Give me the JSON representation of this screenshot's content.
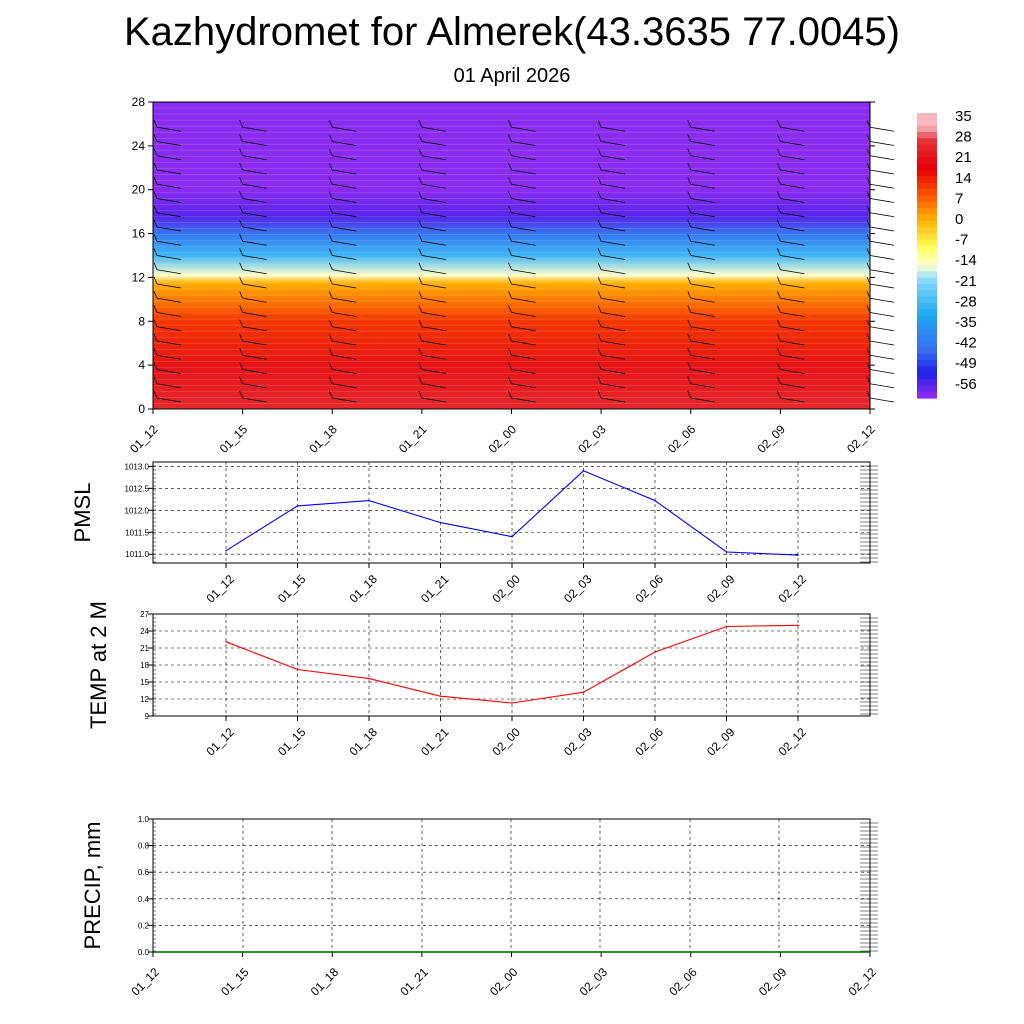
{
  "title": "Kazhydromet for Almerek(43.3635 77.0045)",
  "subtitle": "01 April 2026",
  "chart_data": [
    {
      "type": "heatmap",
      "name": "temperature-profile",
      "x_labels": [
        "01_12",
        "01_15",
        "01_18",
        "01_21",
        "02_00",
        "02_03",
        "02_06",
        "02_09",
        "02_12"
      ],
      "y_ticks": [
        0,
        4,
        8,
        12,
        16,
        20,
        24,
        28
      ],
      "ylim": [
        0,
        28
      ],
      "approx_profile": [
        {
          "level": 0,
          "value": 28
        },
        {
          "level": 4,
          "value": 24
        },
        {
          "level": 8,
          "value": 14
        },
        {
          "level": 11.5,
          "value": 2
        },
        {
          "level": 12.2,
          "value": -14
        },
        {
          "level": 14,
          "value": -28
        },
        {
          "level": 16,
          "value": -42
        },
        {
          "level": 17.5,
          "value": -56
        },
        {
          "level": 20,
          "value": -60
        },
        {
          "level": 28,
          "value": -62
        }
      ],
      "colorbar_labels": [
        "35",
        "28",
        "21",
        "14",
        "7",
        "0",
        "-7",
        "-14",
        "-21",
        "-28",
        "-35",
        "-42",
        "-49",
        "-56"
      ],
      "colorbar_stops": [
        {
          "value": 35,
          "color": "#f7b8c0"
        },
        {
          "value": 30,
          "color": "#e5323a"
        },
        {
          "value": 20,
          "color": "#e60000"
        },
        {
          "value": 10,
          "color": "#ff5a00"
        },
        {
          "value": 2,
          "color": "#ffb000"
        },
        {
          "value": -8,
          "color": "#ffff60"
        },
        {
          "value": -14,
          "color": "#ffffd0"
        },
        {
          "value": -20,
          "color": "#7fd6ff"
        },
        {
          "value": -32,
          "color": "#1ea6f0"
        },
        {
          "value": -44,
          "color": "#3a6ef0"
        },
        {
          "value": -52,
          "color": "#2020e6"
        },
        {
          "value": -60,
          "color": "#8a2cf0"
        }
      ]
    },
    {
      "type": "line",
      "name": "pmsl",
      "ylabel": "PMSL",
      "x": [
        "01_12",
        "01_15",
        "01_18",
        "01_21",
        "02_00",
        "02_03",
        "02_06",
        "02_09",
        "02_12"
      ],
      "values": [
        1011.08,
        1012.1,
        1012.22,
        1011.72,
        1011.4,
        1012.9,
        1012.22,
        1011.05,
        1010.98
      ],
      "y_ticks": [
        "1011.0",
        "1011.5",
        "1012.0",
        "1012.5",
        "1013.0"
      ],
      "ylim": [
        1010.8,
        1013.1
      ],
      "color": "#0000ff"
    },
    {
      "type": "line",
      "name": "temp-2m",
      "ylabel": "TEMP at 2 M",
      "x": [
        "01_12",
        "01_15",
        "01_18",
        "01_21",
        "02_00",
        "02_03",
        "02_06",
        "02_09",
        "02_12"
      ],
      "values": [
        22.1,
        17.2,
        15.6,
        12.5,
        11.3,
        13.2,
        20.3,
        24.8,
        25.0
      ],
      "y_ticks": [
        "9",
        "12",
        "15",
        "18",
        "21",
        "24",
        "27"
      ],
      "ylim": [
        9,
        27
      ],
      "color": "#ff0000"
    },
    {
      "type": "line",
      "name": "precip",
      "ylabel": "PRECIP, mm",
      "x": [
        "01_12",
        "01_15",
        "01_18",
        "01_21",
        "02_00",
        "02_03",
        "02_06",
        "02_09",
        "02_12"
      ],
      "values": [
        0,
        0,
        0,
        0,
        0,
        0,
        0,
        0,
        0
      ],
      "y_ticks": [
        "0.0",
        "0.2",
        "0.4",
        "0.6",
        "0.8",
        "1.0"
      ],
      "ylim": [
        0,
        1
      ],
      "color": "#006400"
    }
  ]
}
